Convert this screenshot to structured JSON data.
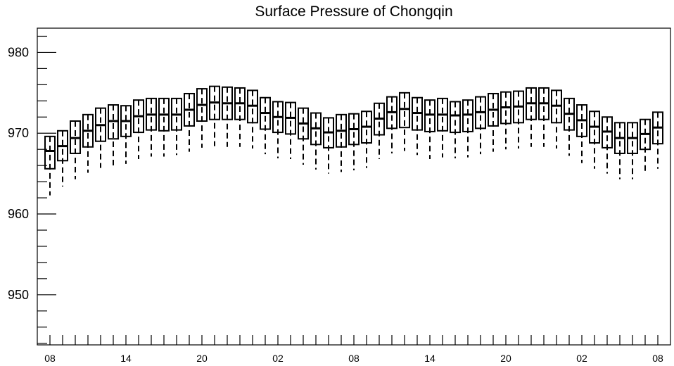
{
  "chart_data": {
    "type": "box",
    "title": "Surface Pressure of Chongqin",
    "ylim": [
      943.8,
      983.0
    ],
    "y_ticks": [
      950,
      960,
      970,
      980
    ],
    "y_tick_labels": [
      "950",
      "960",
      "970",
      "980"
    ],
    "x_tick_labels": [
      "08",
      "14",
      "20",
      "02",
      "08",
      "14",
      "20",
      "02",
      "08"
    ],
    "grid": false,
    "colors": {
      "foreground": "#000000",
      "background": "#ffffff"
    },
    "boxes": [
      {
        "hour": 8,
        "whisker_low": 962.3,
        "q1": 965.6,
        "median": 967.8,
        "q3": 969.6
      },
      {
        "hour": 9,
        "whisker_low": 963.4,
        "q1": 966.6,
        "median": 968.4,
        "q3": 970.3
      },
      {
        "hour": 10,
        "whisker_low": 964.3,
        "q1": 967.5,
        "median": 969.4,
        "q3": 971.5
      },
      {
        "hour": 11,
        "whisker_low": 965.1,
        "q1": 968.3,
        "median": 970.3,
        "q3": 972.3
      },
      {
        "hour": 12,
        "whisker_low": 965.7,
        "q1": 969.0,
        "median": 971.0,
        "q3": 973.1
      },
      {
        "hour": 13,
        "whisker_low": 965.8,
        "q1": 969.3,
        "median": 971.5,
        "q3": 973.5
      },
      {
        "hour": 14,
        "whisker_low": 966.2,
        "q1": 969.6,
        "median": 971.5,
        "q3": 973.4
      },
      {
        "hour": 15,
        "whisker_low": 966.8,
        "q1": 970.1,
        "median": 972.1,
        "q3": 974.1
      },
      {
        "hour": 16,
        "whisker_low": 967.1,
        "q1": 970.4,
        "median": 972.3,
        "q3": 974.3
      },
      {
        "hour": 17,
        "whisker_low": 967.1,
        "q1": 970.3,
        "median": 972.3,
        "q3": 974.3
      },
      {
        "hour": 18,
        "whisker_low": 967.3,
        "q1": 970.4,
        "median": 972.3,
        "q3": 974.3
      },
      {
        "hour": 19,
        "whisker_low": 967.7,
        "q1": 970.9,
        "median": 972.9,
        "q3": 974.9
      },
      {
        "hour": 20,
        "whisker_low": 968.2,
        "q1": 971.5,
        "median": 973.5,
        "q3": 975.5
      },
      {
        "hour": 21,
        "whisker_low": 968.4,
        "q1": 971.7,
        "median": 973.8,
        "q3": 975.8
      },
      {
        "hour": 22,
        "whisker_low": 968.3,
        "q1": 971.7,
        "median": 973.7,
        "q3": 975.7
      },
      {
        "hour": 23,
        "whisker_low": 968.3,
        "q1": 971.7,
        "median": 973.7,
        "q3": 975.6
      },
      {
        "hour": 0,
        "whisker_low": 968.1,
        "q1": 971.3,
        "median": 973.4,
        "q3": 975.3
      },
      {
        "hour": 1,
        "whisker_low": 967.4,
        "q1": 970.5,
        "median": 972.5,
        "q3": 974.4
      },
      {
        "hour": 2,
        "whisker_low": 966.9,
        "q1": 970.1,
        "median": 972.0,
        "q3": 973.9
      },
      {
        "hour": 3,
        "whisker_low": 966.8,
        "q1": 969.9,
        "median": 971.9,
        "q3": 973.8
      },
      {
        "hour": 4,
        "whisker_low": 966.1,
        "q1": 969.3,
        "median": 971.2,
        "q3": 973.1
      },
      {
        "hour": 5,
        "whisker_low": 965.5,
        "q1": 968.6,
        "median": 970.6,
        "q3": 972.5
      },
      {
        "hour": 6,
        "whisker_low": 965.0,
        "q1": 968.2,
        "median": 970.1,
        "q3": 971.9
      },
      {
        "hour": 7,
        "whisker_low": 965.2,
        "q1": 968.3,
        "median": 970.3,
        "q3": 972.3
      },
      {
        "hour": 8,
        "whisker_low": 965.4,
        "q1": 968.6,
        "median": 970.5,
        "q3": 972.4
      },
      {
        "hour": 9,
        "whisker_low": 965.7,
        "q1": 968.8,
        "median": 970.8,
        "q3": 972.7
      },
      {
        "hour": 10,
        "whisker_low": 966.8,
        "q1": 969.8,
        "median": 971.8,
        "q3": 973.7
      },
      {
        "hour": 11,
        "whisker_low": 967.5,
        "q1": 970.6,
        "median": 972.6,
        "q3": 974.5
      },
      {
        "hour": 12,
        "whisker_low": 967.8,
        "q1": 970.7,
        "median": 973.0,
        "q3": 975.0
      },
      {
        "hour": 13,
        "whisker_low": 967.3,
        "q1": 970.4,
        "median": 972.5,
        "q3": 974.4
      },
      {
        "hour": 14,
        "whisker_low": 966.8,
        "q1": 970.2,
        "median": 972.3,
        "q3": 974.1
      },
      {
        "hour": 15,
        "whisker_low": 967.0,
        "q1": 970.3,
        "median": 972.3,
        "q3": 974.3
      },
      {
        "hour": 16,
        "whisker_low": 966.9,
        "q1": 970.1,
        "median": 972.2,
        "q3": 973.9
      },
      {
        "hour": 17,
        "whisker_low": 967.0,
        "q1": 970.2,
        "median": 972.3,
        "q3": 974.1
      },
      {
        "hour": 18,
        "whisker_low": 967.4,
        "q1": 970.6,
        "median": 972.6,
        "q3": 974.5
      },
      {
        "hour": 19,
        "whisker_low": 967.7,
        "q1": 970.9,
        "median": 972.9,
        "q3": 974.9
      },
      {
        "hour": 20,
        "whisker_low": 968.0,
        "q1": 971.2,
        "median": 973.2,
        "q3": 975.1
      },
      {
        "hour": 21,
        "whisker_low": 968.1,
        "q1": 971.3,
        "median": 973.3,
        "q3": 975.2
      },
      {
        "hour": 22,
        "whisker_low": 968.3,
        "q1": 971.7,
        "median": 973.7,
        "q3": 975.6
      },
      {
        "hour": 23,
        "whisker_low": 968.3,
        "q1": 971.7,
        "median": 973.7,
        "q3": 975.6
      },
      {
        "hour": 0,
        "whisker_low": 968.1,
        "q1": 971.3,
        "median": 973.4,
        "q3": 975.3
      },
      {
        "hour": 1,
        "whisker_low": 967.2,
        "q1": 970.4,
        "median": 972.4,
        "q3": 974.3
      },
      {
        "hour": 2,
        "whisker_low": 966.3,
        "q1": 969.6,
        "median": 971.6,
        "q3": 973.5
      },
      {
        "hour": 3,
        "whisker_low": 965.6,
        "q1": 968.8,
        "median": 970.8,
        "q3": 972.7
      },
      {
        "hour": 4,
        "whisker_low": 965.0,
        "q1": 968.2,
        "median": 970.2,
        "q3": 972.0
      },
      {
        "hour": 5,
        "whisker_low": 964.3,
        "q1": 967.5,
        "median": 969.4,
        "q3": 971.3
      },
      {
        "hour": 6,
        "whisker_low": 964.3,
        "q1": 967.5,
        "median": 969.4,
        "q3": 971.3
      },
      {
        "hour": 7,
        "whisker_low": 964.9,
        "q1": 968.0,
        "median": 969.9,
        "q3": 971.7
      },
      {
        "hour": 8,
        "whisker_low": 965.6,
        "q1": 968.7,
        "median": 970.7,
        "q3": 972.6
      }
    ]
  }
}
